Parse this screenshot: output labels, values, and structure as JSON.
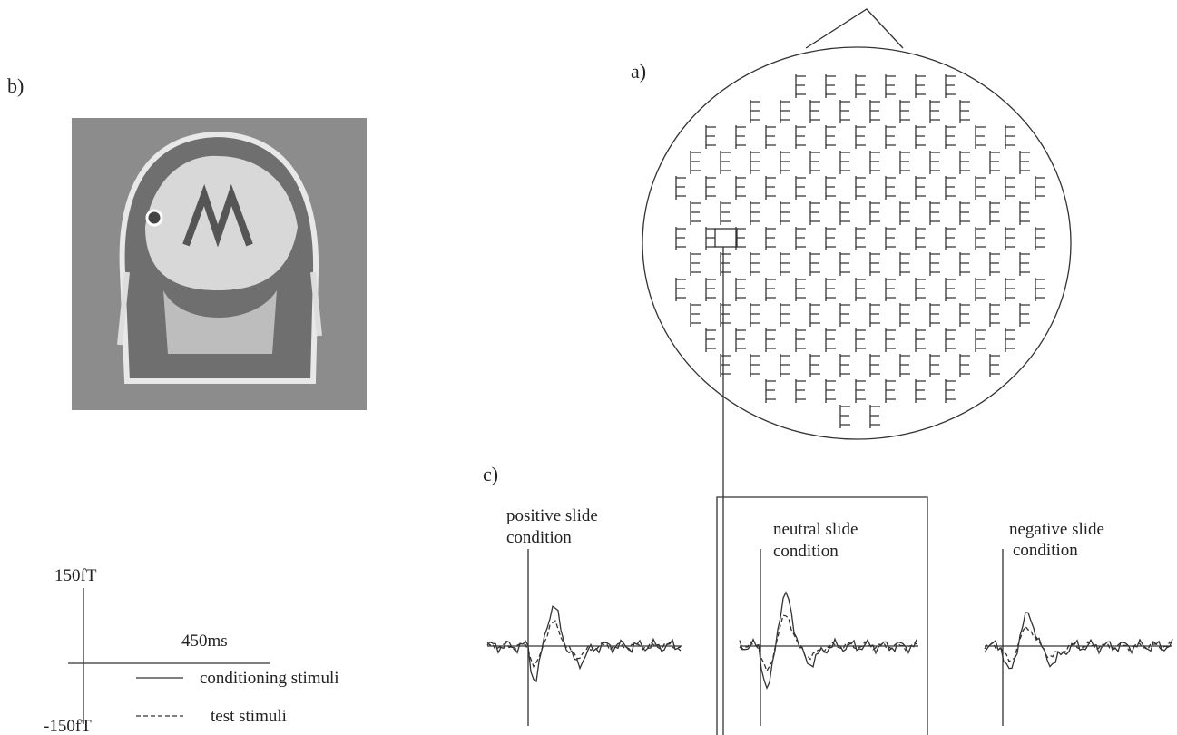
{
  "panels": {
    "a": {
      "label": "a)"
    },
    "b": {
      "label": "b)"
    },
    "c": {
      "label": "c)",
      "conditions": [
        {
          "title": "positive slide",
          "subtitle": "condition"
        },
        {
          "title": "neutral slide",
          "subtitle": "condition"
        },
        {
          "title": "negative slide",
          "subtitle": "condition"
        }
      ]
    }
  },
  "scale": {
    "top": "150fT",
    "bottom": "-150fT",
    "time": "450ms"
  },
  "legend": [
    {
      "label": "conditioning stimuli"
    },
    {
      "label": "test stimuli"
    }
  ]
}
